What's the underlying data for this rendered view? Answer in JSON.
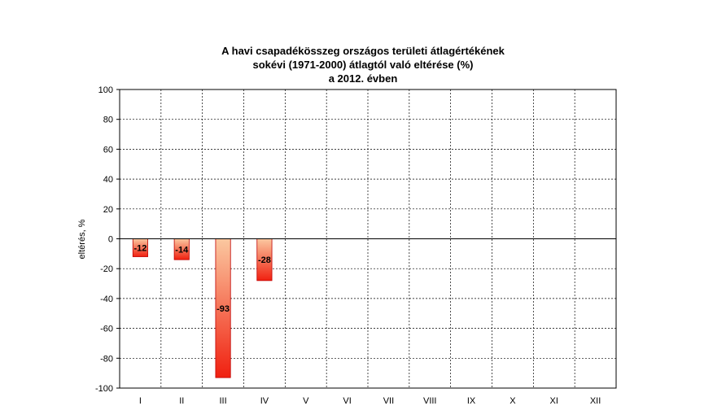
{
  "chart_data": {
    "type": "bar",
    "title_lines": [
      "A havi csapadékösszeg országos területi átlagértékének",
      "sokévi (1971-2000) átlagtól való eltérése (%)",
      "a 2012. évben"
    ],
    "ylabel": "eltérés, %",
    "xlabel": "",
    "categories": [
      "I",
      "II",
      "III",
      "IV",
      "V",
      "VI",
      "VII",
      "VIII",
      "IX",
      "X",
      "XI",
      "XII"
    ],
    "values": [
      -12,
      -14,
      -93,
      -28,
      null,
      null,
      null,
      null,
      null,
      null,
      null,
      null
    ],
    "data_labels": [
      "-12",
      "-14",
      "-93",
      "-28",
      "",
      "",
      "",
      "",
      "",
      "",
      "",
      ""
    ],
    "ylim": [
      -100,
      100
    ],
    "yticks": [
      100,
      80,
      60,
      40,
      20,
      0,
      -20,
      -40,
      -60,
      -80,
      -100
    ],
    "grid": true,
    "bar_gradient": {
      "top": "#fbc8a0",
      "bottom": "#f02010"
    },
    "axis_color": "#000000",
    "grid_color": "#000000"
  }
}
